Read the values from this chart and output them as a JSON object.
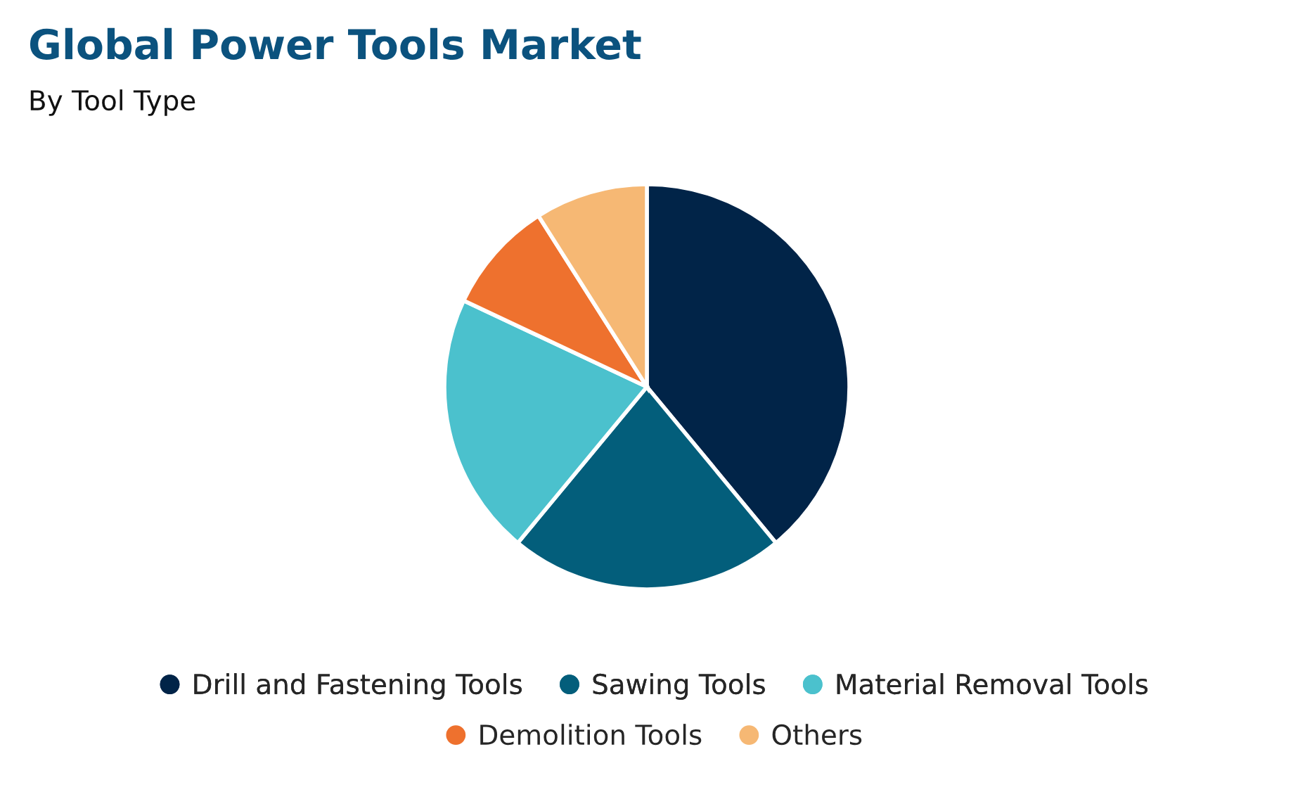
{
  "chart_data": {
    "type": "pie",
    "title": "Global Power Tools Market",
    "subtitle": "By Tool Type",
    "categories": [
      "Drill and Fastening Tools",
      "Sawing Tools",
      "Material Removal Tools",
      "Demolition Tools",
      "Others"
    ],
    "values": [
      39,
      22,
      21,
      9,
      9
    ],
    "colors": [
      "#012448",
      "#035e7b",
      "#4bc1cd",
      "#ee712e",
      "#f6b874"
    ],
    "legend": "bottom",
    "marker": "circle"
  }
}
